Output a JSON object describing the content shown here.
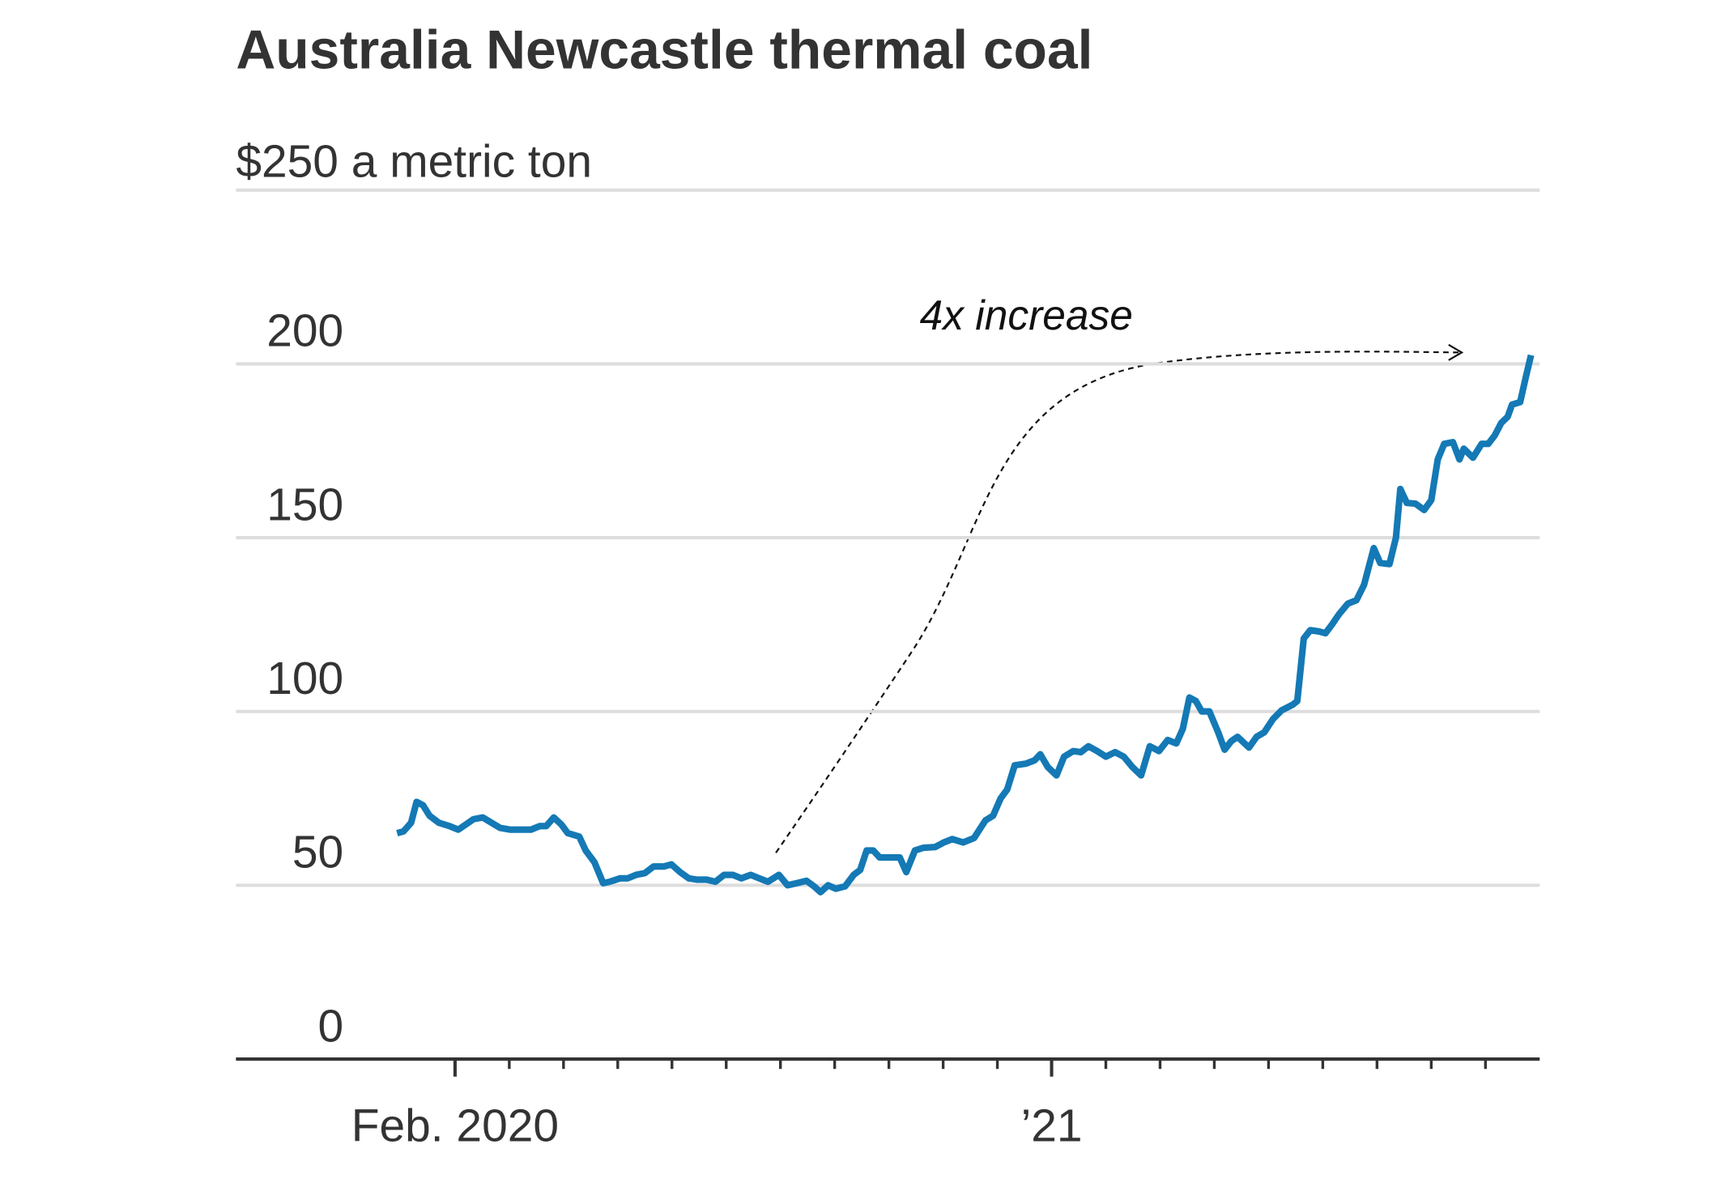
{
  "chart_data": {
    "type": "line",
    "title": "Australia Newcastle thermal coal",
    "annotation": "4x increase",
    "xlim": [
      -3.04,
      21.0
    ],
    "xticks": [
      {
        "value": 1,
        "label": "Feb. 2020"
      },
      {
        "value": 12,
        "label": "’21"
      }
    ],
    "xminor_ticks": [
      2,
      3,
      4,
      5,
      6,
      7,
      8,
      9,
      10,
      11,
      13,
      14,
      15,
      16,
      17,
      18,
      19,
      20
    ],
    "ylim": [
      0,
      250
    ],
    "yticks": [
      0,
      50,
      100,
      150,
      200,
      {
        "value": 250,
        "label": "$250 a metric ton"
      }
    ],
    "grid": true,
    "series": [
      {
        "color": "#1479b5",
        "x": [
          -0.07,
          0.05,
          0.19,
          0.29,
          0.41,
          0.53,
          0.7,
          0.9,
          1.06,
          1.2,
          1.34,
          1.51,
          1.67,
          1.83,
          2.01,
          2.21,
          2.4,
          2.56,
          2.68,
          2.82,
          2.96,
          3.08,
          3.29,
          3.41,
          3.57,
          3.73,
          3.85,
          4.04,
          4.18,
          4.34,
          4.5,
          4.66,
          4.85,
          4.99,
          5.15,
          5.31,
          5.47,
          5.64,
          5.8,
          5.96,
          6.12,
          6.28,
          6.45,
          6.61,
          6.77,
          6.97,
          7.13,
          7.3,
          7.48,
          7.62,
          7.74,
          7.88,
          8.02,
          8.19,
          8.35,
          8.47,
          8.59,
          8.71,
          8.83,
          9.0,
          9.2,
          9.32,
          9.48,
          9.64,
          9.85,
          10.01,
          10.17,
          10.37,
          10.57,
          10.78,
          10.92,
          11.06,
          11.18,
          11.32,
          11.53,
          11.69,
          11.79,
          11.93,
          12.09,
          12.23,
          12.4,
          12.54,
          12.68,
          12.84,
          13.0,
          13.17,
          13.33,
          13.49,
          13.65,
          13.81,
          13.98,
          14.14,
          14.3,
          14.42,
          14.54,
          14.66,
          14.77,
          14.91,
          15.07,
          15.19,
          15.31,
          15.43,
          15.64,
          15.78,
          15.92,
          16.08,
          16.24,
          16.45,
          16.53,
          16.65,
          16.77,
          16.93,
          17.05,
          17.17,
          17.3,
          17.46,
          17.62,
          17.76,
          17.94,
          18.06,
          18.23,
          18.35,
          18.43,
          18.55,
          18.71,
          18.87,
          19.0,
          19.12,
          19.24,
          19.4,
          19.52,
          19.6,
          19.77,
          19.93,
          20.05,
          20.17,
          20.29,
          20.41,
          20.49,
          20.64,
          20.74,
          20.84
        ],
        "values": [
          65,
          65.5,
          68,
          74,
          73,
          70,
          68,
          67,
          66,
          67.5,
          69,
          69.5,
          68,
          66.5,
          66,
          66,
          66,
          67,
          67,
          69.5,
          67.5,
          65,
          64,
          60,
          56.6,
          50.6,
          51,
          52,
          52,
          53,
          53.5,
          55.4,
          55.4,
          56,
          53.8,
          52,
          51.6,
          51.6,
          51,
          53,
          53,
          52,
          53,
          52,
          51,
          53,
          50,
          50.6,
          51.3,
          49.7,
          48,
          50,
          49,
          49.7,
          53,
          54.4,
          60,
          60,
          58,
          58,
          58,
          53.8,
          60,
          60.8,
          61,
          62.3,
          63.3,
          62.3,
          63.6,
          68.7,
          70,
          75,
          77.5,
          84.5,
          85,
          86,
          87.7,
          84,
          81.6,
          87,
          88.6,
          88.3,
          90,
          88.6,
          87,
          88.3,
          87,
          84,
          81.6,
          90,
          88.6,
          91.8,
          90.8,
          95,
          104,
          103,
          100,
          100,
          94,
          89,
          91.4,
          92.7,
          89.6,
          92.7,
          94,
          97.8,
          100.3,
          102,
          103,
          121,
          123.4,
          123,
          122.5,
          125,
          128,
          131,
          132,
          136.4,
          147,
          142.7,
          142.4,
          150,
          164,
          160,
          159.8,
          158,
          160.8,
          172.5,
          177,
          177.5,
          172.5,
          175.6,
          173,
          177,
          177,
          179.4,
          183,
          184.8,
          188.3,
          189,
          196,
          202.5
        ]
      }
    ]
  }
}
